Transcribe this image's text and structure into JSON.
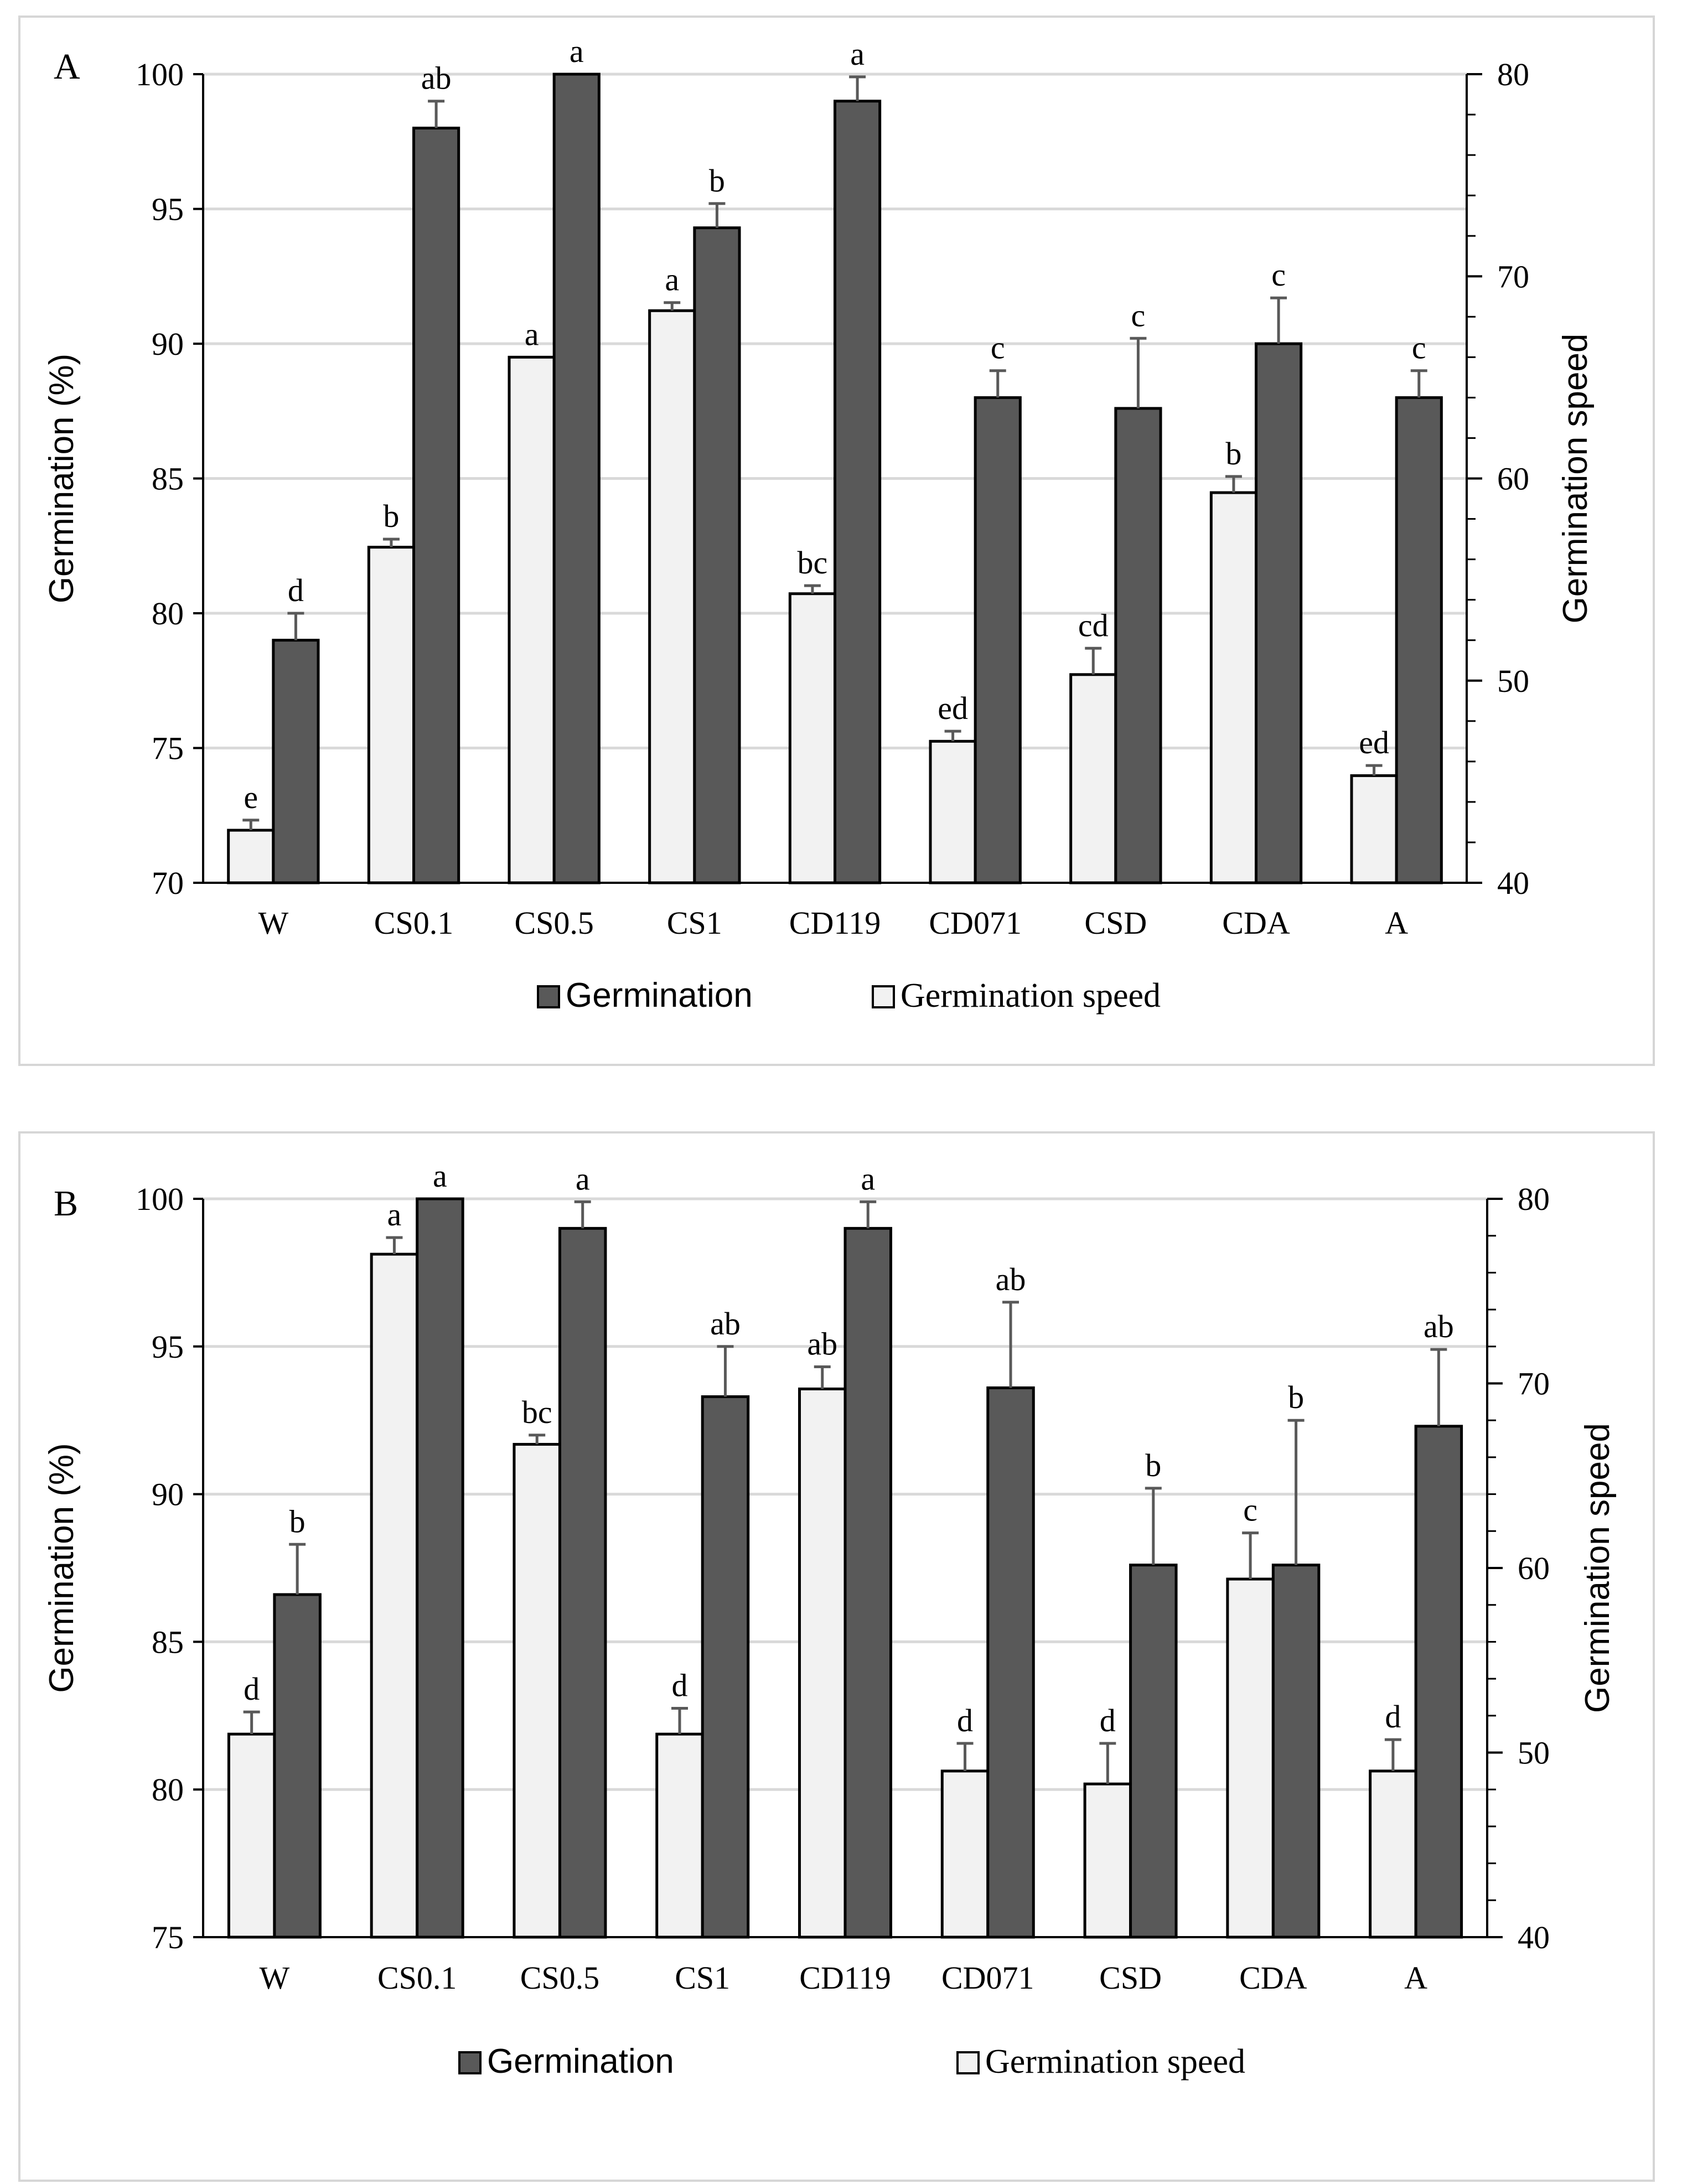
{
  "colors": {
    "germination": "#595959",
    "germination_speed": "#f2f2f2",
    "grid": "#d9d9d9",
    "error_bar": "#595959",
    "frame": "#d6d6d6"
  },
  "chart_data": [
    {
      "type": "bar",
      "panel_label": "A",
      "categories": [
        "W",
        "CS0.1",
        "CS0.5",
        "CS1",
        "CD119",
        "CD071",
        "CSD",
        "CDA",
        "A"
      ],
      "ylabel": "Germination (%)",
      "y2label": "Germination speed",
      "ylim": [
        70,
        100
      ],
      "y_ticks": [
        "70",
        "75",
        "80",
        "85",
        "90",
        "95",
        "100"
      ],
      "y2lim": [
        40,
        80
      ],
      "y2_ticks": [
        "40",
        "50",
        "60",
        "70",
        "80"
      ],
      "grid": true,
      "legend_position": "bottom",
      "series": [
        {
          "name": "Germination",
          "axis": "left",
          "values": [
            79,
            98,
            100,
            94.3,
            99,
            88,
            87.6,
            90,
            88
          ],
          "errors": [
            1.0,
            1.0,
            0.0,
            0.9,
            0.9,
            1.0,
            2.6,
            1.7,
            1.0
          ],
          "labels": [
            "d",
            "ab",
            "a",
            "b",
            "a",
            "c",
            "c",
            "c",
            "c"
          ]
        },
        {
          "name": "Germination speed",
          "axis": "right",
          "values": [
            42.6,
            56.6,
            66.0,
            68.3,
            54.3,
            47.0,
            50.3,
            59.3,
            45.3
          ],
          "errors": [
            0.5,
            0.4,
            0.0,
            0.4,
            0.4,
            0.5,
            1.3,
            0.8,
            0.5
          ],
          "labels": [
            "e",
            "b",
            "a",
            "a",
            "bc",
            "ed",
            "cd",
            "b",
            "ed"
          ]
        }
      ]
    },
    {
      "type": "bar",
      "panel_label": "B",
      "categories": [
        "W",
        "CS0.1",
        "CS0.5",
        "CS1",
        "CD119",
        "CD071",
        "CSD",
        "CDA",
        "A"
      ],
      "ylabel": "Germination (%)",
      "y2label": "Germination speed",
      "ylim": [
        75,
        100
      ],
      "y_ticks": [
        "75",
        "80",
        "85",
        "90",
        "95",
        "100"
      ],
      "y2lim": [
        40,
        80
      ],
      "y2_ticks": [
        "40",
        "50",
        "60",
        "70",
        "80"
      ],
      "grid": true,
      "legend_position": "bottom",
      "series": [
        {
          "name": "Germination",
          "axis": "left",
          "values": [
            86.6,
            100,
            99,
            93.3,
            99,
            93.6,
            87.6,
            87.6,
            92.3
          ],
          "errors": [
            1.7,
            0.0,
            0.9,
            1.7,
            0.9,
            2.9,
            2.6,
            4.9,
            2.6
          ],
          "labels": [
            "b",
            "a",
            "a",
            "ab",
            "a",
            "ab",
            "b",
            "b",
            "ab"
          ]
        },
        {
          "name": "Germination speed",
          "axis": "right",
          "values": [
            51.0,
            77.0,
            66.7,
            51.0,
            69.7,
            49.0,
            48.3,
            59.4,
            49.0
          ],
          "errors": [
            1.2,
            0.9,
            0.5,
            1.4,
            1.2,
            1.5,
            2.2,
            2.5,
            1.7
          ],
          "labels": [
            "d",
            "a",
            "bc",
            "d",
            "ab",
            "d",
            "d",
            "c",
            "d"
          ]
        }
      ]
    }
  ]
}
